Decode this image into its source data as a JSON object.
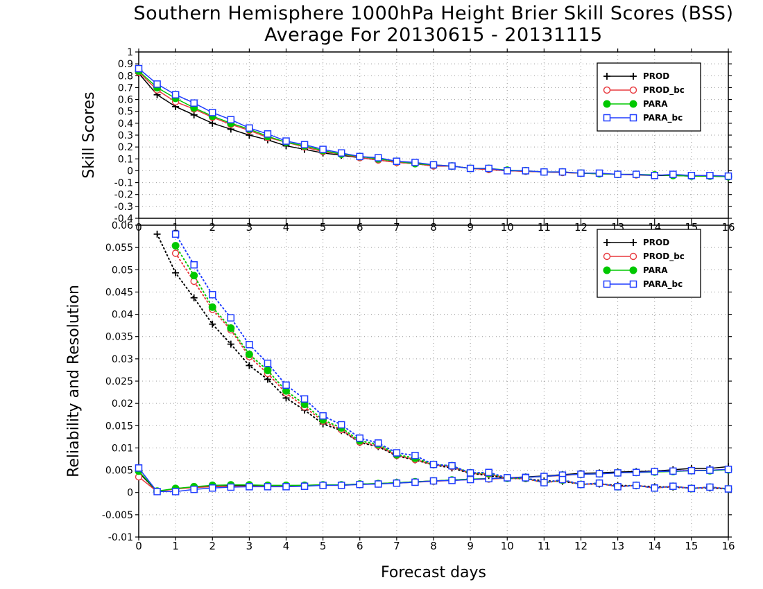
{
  "chart_data": [
    {
      "type": "line",
      "title": "Southern Hemisphere 1000hPa Height Brier Skill Scores (BSS)",
      "subtitle": "Average For 20130615 - 20131115",
      "xlabel": "",
      "ylabel": "Skill Scores",
      "xlim": [
        0,
        16
      ],
      "ylim": [
        -0.4,
        1
      ],
      "xticks": [
        "0",
        "1",
        "2",
        "3",
        "4",
        "5",
        "6",
        "7",
        "8",
        "9",
        "10",
        "11",
        "12",
        "13",
        "14",
        "15",
        "16"
      ],
      "yticks": [
        "-0.4",
        "-0.3",
        "-0.2",
        "-0.1",
        "0",
        "0.1",
        "0.2",
        "0.3",
        "0.4",
        "0.5",
        "0.6",
        "0.7",
        "0.8",
        "0.9",
        "1"
      ],
      "grid": true,
      "legend_position": "top-right",
      "x": [
        0,
        0.5,
        1,
        1.5,
        2,
        2.5,
        3,
        3.5,
        4,
        4.5,
        5,
        5.5,
        6,
        6.5,
        7,
        7.5,
        8,
        8.5,
        9,
        9.5,
        10,
        10.5,
        11,
        11.5,
        12,
        12.5,
        13,
        13.5,
        14,
        14.5,
        15,
        15.5,
        16
      ],
      "series": [
        {
          "name": "PROD",
          "values": [
            0.82,
            0.64,
            0.54,
            0.47,
            0.4,
            0.35,
            0.3,
            0.26,
            0.21,
            0.18,
            0.15,
            0.13,
            0.11,
            0.09,
            0.07,
            0.06,
            0.04,
            0.04,
            0.02,
            0.01,
            0.0,
            -0.005,
            -0.01,
            -0.015,
            -0.02,
            -0.025,
            -0.03,
            -0.035,
            -0.04,
            -0.04,
            -0.045,
            -0.045,
            -0.05
          ]
        },
        {
          "name": "PROD_bc",
          "values": [
            0.83,
            0.68,
            0.58,
            0.52,
            0.45,
            0.39,
            0.34,
            0.28,
            0.24,
            0.2,
            0.16,
            0.14,
            0.11,
            0.09,
            0.07,
            0.06,
            0.04,
            0.04,
            0.02,
            0.01,
            0.0,
            -0.005,
            -0.01,
            -0.015,
            -0.02,
            -0.025,
            -0.03,
            -0.035,
            -0.035,
            -0.04,
            -0.045,
            -0.045,
            -0.05
          ]
        },
        {
          "name": "PARA",
          "values": [
            0.84,
            0.7,
            0.61,
            0.53,
            0.46,
            0.4,
            0.35,
            0.29,
            0.24,
            0.21,
            0.17,
            0.14,
            0.12,
            0.1,
            0.08,
            0.06,
            0.05,
            0.04,
            0.02,
            0.02,
            0.005,
            0.0,
            -0.01,
            -0.01,
            -0.02,
            -0.025,
            -0.03,
            -0.03,
            -0.035,
            -0.04,
            -0.045,
            -0.045,
            -0.05
          ]
        },
        {
          "name": "PARA_bc",
          "values": [
            0.86,
            0.73,
            0.64,
            0.57,
            0.49,
            0.43,
            0.36,
            0.31,
            0.25,
            0.22,
            0.18,
            0.15,
            0.12,
            0.11,
            0.08,
            0.07,
            0.05,
            0.04,
            0.02,
            0.02,
            0.0,
            0.0,
            -0.01,
            -0.01,
            -0.02,
            -0.02,
            -0.03,
            -0.03,
            -0.04,
            -0.03,
            -0.04,
            -0.04,
            -0.045
          ]
        }
      ]
    },
    {
      "type": "line",
      "xlabel": "Forecast days",
      "ylabel": "Reliability and Resolution",
      "xlim": [
        0,
        16
      ],
      "ylim": [
        -0.01,
        0.06
      ],
      "xticks": [
        "0",
        "1",
        "2",
        "3",
        "4",
        "5",
        "6",
        "7",
        "8",
        "9",
        "10",
        "11",
        "12",
        "13",
        "14",
        "15",
        "16"
      ],
      "yticks": [
        "-0.01",
        "-0.005",
        "0",
        "0.005",
        "0.01",
        "0.015",
        "0.02",
        "0.025",
        "0.03",
        "0.035",
        "0.04",
        "0.045",
        "0.05",
        "0.055",
        "0.06"
      ],
      "grid": true,
      "legend_position": "top-right",
      "x": [
        0,
        0.5,
        1,
        1.5,
        2,
        2.5,
        3,
        3.5,
        4,
        4.5,
        5,
        5.5,
        6,
        6.5,
        7,
        7.5,
        8,
        8.5,
        9,
        9.5,
        10,
        10.5,
        11,
        11.5,
        12,
        12.5,
        13,
        13.5,
        14,
        14.5,
        15,
        15.5,
        16
      ],
      "series": [
        {
          "name": "PROD",
          "style": "solid",
          "values": [
            0.0045,
            0.0002,
            0.0009,
            0.0012,
            0.0014,
            0.0015,
            0.0015,
            0.0015,
            0.0015,
            0.0016,
            0.0017,
            0.0017,
            0.0019,
            0.002,
            0.0022,
            0.0024,
            0.0026,
            0.0028,
            0.003,
            0.0031,
            0.0033,
            0.0035,
            0.0037,
            0.004,
            0.0043,
            0.0044,
            0.0046,
            0.0047,
            0.0048,
            0.0051,
            0.0054,
            0.0054,
            0.0058
          ]
        },
        {
          "name": "PROD_bc",
          "style": "solid",
          "values": [
            0.0035,
            0.0002,
            0.0008,
            0.0011,
            0.0013,
            0.0014,
            0.0014,
            0.0014,
            0.0014,
            0.0015,
            0.0016,
            0.0016,
            0.0018,
            0.0019,
            0.0021,
            0.0023,
            0.0025,
            0.0027,
            0.0029,
            0.003,
            0.0032,
            0.0034,
            0.0036,
            0.0038,
            0.0041,
            0.0042,
            0.0044,
            0.0045,
            0.0046,
            0.0048,
            0.005,
            0.005,
            0.0052
          ]
        },
        {
          "name": "PARA",
          "style": "solid",
          "values": [
            0.0048,
            0.0003,
            0.0009,
            0.0013,
            0.0016,
            0.0017,
            0.0017,
            0.0016,
            0.0016,
            0.0016,
            0.0017,
            0.0017,
            0.0019,
            0.002,
            0.0022,
            0.0024,
            0.0026,
            0.0028,
            0.003,
            0.0031,
            0.0033,
            0.0034,
            0.0036,
            0.0039,
            0.0041,
            0.0042,
            0.0044,
            0.0045,
            0.0046,
            0.0047,
            0.0049,
            0.0049,
            0.0051
          ]
        },
        {
          "name": "PARA_bc",
          "style": "solid",
          "values": [
            0.0055,
            0.0002,
            0.0002,
            0.0007,
            0.001,
            0.0012,
            0.0013,
            0.0013,
            0.0013,
            0.0014,
            0.0016,
            0.0016,
            0.0018,
            0.0019,
            0.0021,
            0.0023,
            0.0026,
            0.0027,
            0.0029,
            0.0031,
            0.0033,
            0.0034,
            0.0036,
            0.0039,
            0.0041,
            0.0042,
            0.0044,
            0.0045,
            0.0047,
            0.0048,
            0.0049,
            0.005,
            0.0052
          ]
        },
        {
          "name": "PROD",
          "style": "dotted",
          "values": [
            null,
            0.058,
            0.0493,
            0.0437,
            0.0378,
            0.0333,
            0.0285,
            0.0254,
            0.0212,
            0.0185,
            0.0154,
            0.0139,
            0.0112,
            0.0103,
            0.0082,
            0.0073,
            0.0062,
            0.0055,
            0.0043,
            0.0038,
            0.0032,
            0.0031,
            0.0026,
            0.0025,
            0.0019,
            0.0019,
            0.0016,
            0.0015,
            0.0013,
            0.0012,
            0.001,
            0.001,
            0.0008
          ]
        },
        {
          "name": "PROD_bc",
          "style": "dotted",
          "values": [
            null,
            null,
            0.0537,
            0.0474,
            0.0411,
            0.0365,
            0.0305,
            0.0267,
            0.0223,
            0.0192,
            0.016,
            0.0141,
            0.0113,
            0.0105,
            0.0083,
            0.0074,
            0.0062,
            0.0058,
            0.0043,
            0.0041,
            0.0032,
            0.0031,
            0.0022,
            0.0027,
            0.0018,
            0.002,
            0.0013,
            0.0016,
            0.001,
            0.0014,
            0.0009,
            0.0012,
            0.0008
          ]
        },
        {
          "name": "PARA",
          "style": "dotted",
          "values": [
            null,
            null,
            0.0554,
            0.0487,
            0.0416,
            0.0369,
            0.031,
            0.0274,
            0.0228,
            0.0198,
            0.0163,
            0.0145,
            0.0116,
            0.0108,
            0.0085,
            0.0077,
            0.0063,
            0.006,
            0.0044,
            0.0043,
            0.0032,
            0.0032,
            0.0022,
            0.0028,
            0.0018,
            0.0021,
            0.0013,
            0.0016,
            0.001,
            0.0014,
            0.0009,
            0.0012,
            0.0008
          ]
        },
        {
          "name": "PARA_bc",
          "style": "dotted",
          "values": [
            null,
            null,
            0.058,
            0.0511,
            0.0444,
            0.0392,
            0.0332,
            0.029,
            0.0241,
            0.021,
            0.0172,
            0.0152,
            0.0122,
            0.0111,
            0.0089,
            0.0083,
            0.0063,
            0.006,
            0.0044,
            0.0045,
            0.0033,
            0.0033,
            0.0022,
            0.0029,
            0.0018,
            0.0021,
            0.0013,
            0.0016,
            0.001,
            0.0014,
            0.0009,
            0.0012,
            0.0008
          ]
        }
      ]
    }
  ],
  "legend": {
    "entries": [
      {
        "name": "PROD",
        "color": "#000000",
        "marker": "plus"
      },
      {
        "name": "PROD_bc",
        "color": "#e8383d",
        "marker": "open-circle"
      },
      {
        "name": "PARA",
        "color": "#00c800",
        "marker": "filled-circle"
      },
      {
        "name": "PARA_bc",
        "color": "#1e3cff",
        "marker": "open-square"
      }
    ]
  },
  "colors": {
    "PROD": "#000000",
    "PROD_bc": "#e8383d",
    "PARA": "#00c800",
    "PARA_bc": "#1e3cff",
    "grid": "#9a9a9a"
  }
}
